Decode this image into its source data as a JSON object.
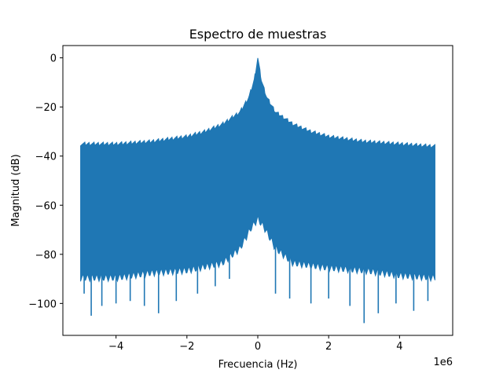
{
  "chart_data": {
    "type": "line",
    "title": "Espectro de muestras",
    "xlabel": "Frecuencia (Hz)",
    "ylabel": "Magnitud (dB)",
    "x_offset_text": "1e6",
    "xlim": [
      -5.5,
      5.5
    ],
    "ylim": [
      -113,
      5
    ],
    "x_ticks": [
      -4,
      -2,
      0,
      2,
      4
    ],
    "x_tick_labels": [
      "−4",
      "−2",
      "0",
      "2",
      "4"
    ],
    "y_ticks": [
      0,
      -20,
      -40,
      -60,
      -80,
      -100
    ],
    "y_tick_labels": [
      "0",
      "−20",
      "−40",
      "−60",
      "−80",
      "−100"
    ],
    "grid": false,
    "legend": "none",
    "series": [
      {
        "color": "#1f77b4",
        "x_range": [
          -5.0,
          5.0
        ],
        "upper_envelope": {
          "x": [
            -5.0,
            -4.0,
            -3.0,
            -2.0,
            -1.5,
            -1.0,
            -0.5,
            -0.25,
            -0.1,
            0.0,
            0.1,
            0.25,
            0.5,
            1.0,
            1.5,
            2.0,
            3.0,
            4.0,
            5.0
          ],
          "y": [
            -35,
            -35,
            -34,
            -32,
            -30,
            -27,
            -22,
            -16,
            -9,
            0,
            -9,
            -16,
            -22,
            -27,
            -30,
            -32,
            -34,
            -35,
            -36
          ]
        },
        "lower_envelope": {
          "x": [
            -5.0,
            -4.0,
            -3.0,
            -2.0,
            -1.0,
            -0.5,
            -0.2,
            0.0,
            0.2,
            0.5,
            1.0,
            2.0,
            3.0,
            4.0,
            5.0
          ],
          "y": [
            -88,
            -88,
            -86,
            -85,
            -82,
            -76,
            -68,
            -64,
            -68,
            -76,
            -82,
            -84,
            -85,
            -87,
            -88
          ]
        },
        "dips": {
          "x": [
            -4.9,
            -4.7,
            -4.4,
            -4.0,
            -3.6,
            -3.2,
            -2.8,
            -2.3,
            -1.7,
            -1.2,
            -0.8,
            0.5,
            0.9,
            1.5,
            2.0,
            2.6,
            3.0,
            3.4,
            3.9,
            4.4,
            4.8
          ],
          "y": [
            -96,
            -105,
            -101,
            -100,
            -99,
            -101,
            -104,
            -99,
            -96,
            -93,
            -90,
            -96,
            -98,
            -100,
            -98,
            -101,
            -108,
            -104,
            -100,
            -103,
            -99
          ]
        }
      }
    ]
  }
}
